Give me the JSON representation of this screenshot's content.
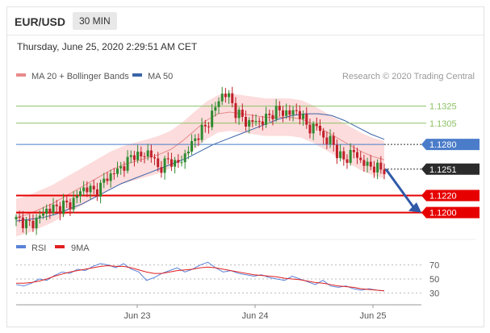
{
  "header": {
    "symbol": "EUR/USD",
    "timeframe": "30 MIN"
  },
  "datetime": "Thursday, June 25, 2020 2:29:51 AM CET",
  "colors": {
    "ma20": "#e88a8a",
    "bands": "#fcd6d6",
    "ma50": "#3a64a8",
    "resistance": "#8cc264",
    "pivot": "#4a7cc9",
    "support": "#e60000",
    "price_label": "#333333",
    "up_candle": "#2f8a2f",
    "down_candle": "#c0202a",
    "rsi": "#5a82d8",
    "rsi_ma": "#e02020",
    "arrow": "#2f5aa8"
  },
  "chart_data": [
    {
      "type": "candlestick",
      "legend": [
        {
          "name": "MA 20 + Bollinger Bands",
          "color": "#e88a8a"
        },
        {
          "name": "MA 50",
          "color": "#3a64a8"
        }
      ],
      "credit": "Research © 2020 Trading Central",
      "ylim": [
        1.1175,
        1.1355
      ],
      "x_ticks": [
        "Jun 23",
        "Jun 24",
        "Jun 25"
      ],
      "close_path": [
        1.1192,
        1.119,
        1.1186,
        1.1188,
        1.1196,
        1.1202,
        1.1206,
        1.1204,
        1.121,
        1.1208,
        1.1218,
        1.1226,
        1.123,
        1.1224,
        1.1228,
        1.124,
        1.1244,
        1.125,
        1.1254,
        1.1262,
        1.127,
        1.1264,
        1.1272,
        1.1266,
        1.125,
        1.1258,
        1.1262,
        1.1256,
        1.1262,
        1.1275,
        1.1284,
        1.1296,
        1.13,
        1.1316,
        1.133,
        1.1342,
        1.1334,
        1.1318,
        1.1312,
        1.1304,
        1.1308,
        1.1306,
        1.131,
        1.1316,
        1.132,
        1.1318,
        1.1316,
        1.132,
        1.1314,
        1.1302,
        1.1298,
        1.1304,
        1.128,
        1.1288,
        1.127,
        1.1262,
        1.1266,
        1.1272,
        1.126,
        1.1256,
        1.1254,
        1.1251,
        1.1251
      ],
      "ma20": [
        1.1194,
        1.1198,
        1.1204,
        1.121,
        1.1218,
        1.1226,
        1.1234,
        1.1242,
        1.125,
        1.1256,
        1.126,
        1.1264,
        1.1268,
        1.1274,
        1.1284,
        1.1296,
        1.1308,
        1.1316,
        1.1318,
        1.1316,
        1.1314,
        1.1312,
        1.1312,
        1.1312,
        1.131,
        1.1304,
        1.1296,
        1.1288,
        1.128,
        1.1272,
        1.1266,
        1.1262
      ],
      "ma50": [
        1.119,
        1.1192,
        1.1194,
        1.1198,
        1.1204,
        1.121,
        1.1218,
        1.1226,
        1.1234,
        1.124,
        1.1246,
        1.1252,
        1.1258,
        1.1264,
        1.1272,
        1.128,
        1.1286,
        1.1292,
        1.1298,
        1.1304,
        1.131,
        1.1314,
        1.1316,
        1.1316,
        1.1314,
        1.1308,
        1.13,
        1.1292,
        1.1286
      ],
      "levels": [
        {
          "label": "1.1325",
          "value": 1.1325,
          "kind": "resistance"
        },
        {
          "label": "1.1305",
          "value": 1.1305,
          "kind": "resistance"
        },
        {
          "label": "1.1280",
          "value": 1.128,
          "kind": "pivot"
        },
        {
          "label": "1.1251",
          "value": 1.1251,
          "kind": "price"
        },
        {
          "label": "1.1220",
          "value": 1.122,
          "kind": "support"
        },
        {
          "label": "1.1200",
          "value": 1.12,
          "kind": "support"
        }
      ]
    },
    {
      "type": "line",
      "legend": [
        {
          "name": "RSI",
          "color": "#5a82d8"
        },
        {
          "name": "9MA",
          "color": "#e02020"
        }
      ],
      "ylim": [
        20,
        80
      ],
      "y_ticks": [
        "70",
        "50",
        "30"
      ],
      "rsi": [
        42,
        40,
        44,
        50,
        48,
        55,
        60,
        58,
        64,
        62,
        68,
        72,
        70,
        66,
        72,
        64,
        60,
        48,
        52,
        58,
        62,
        66,
        60,
        64,
        70,
        74,
        66,
        60,
        62,
        58,
        56,
        54,
        56,
        52,
        50,
        48,
        54,
        50,
        46,
        42,
        48,
        40,
        38,
        40,
        36,
        34,
        36,
        34,
        33
      ],
      "ma": [
        44,
        44,
        45,
        47,
        50,
        54,
        57,
        60,
        62,
        64,
        66,
        68,
        69,
        68,
        68,
        66,
        63,
        60,
        58,
        58,
        60,
        62,
        63,
        64,
        66,
        67,
        66,
        64,
        62,
        60,
        58,
        56,
        55,
        54,
        53,
        51,
        50,
        49,
        47,
        45,
        44,
        42,
        40,
        39,
        38,
        36,
        35,
        34,
        33
      ]
    }
  ]
}
